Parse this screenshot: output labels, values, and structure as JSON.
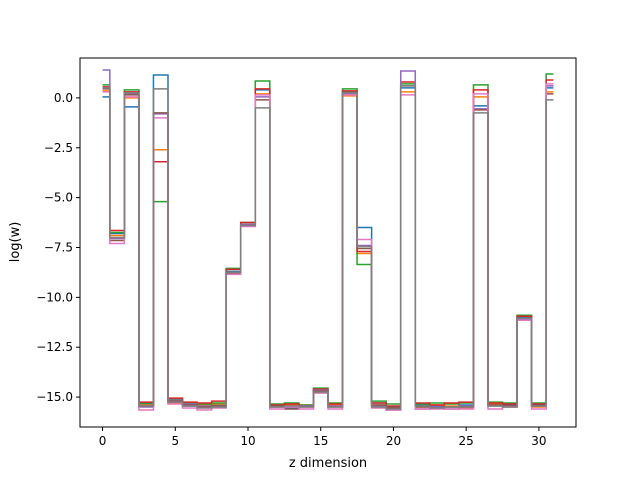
{
  "chart_data": {
    "type": "line",
    "drawstyle": "steps-mid",
    "title": "",
    "xlabel": "z dimension",
    "ylabel": "log(w)",
    "xlim": [
      -1.55,
      32.55
    ],
    "ylim": [
      -16.5,
      2.0
    ],
    "xticks": [
      0,
      5,
      10,
      15,
      20,
      25,
      30
    ],
    "xtick_labels": [
      "0",
      "5",
      "10",
      "15",
      "20",
      "25",
      "30"
    ],
    "yticks": [
      0.0,
      -2.5,
      -5.0,
      -7.5,
      -10.0,
      -12.5,
      -15.0
    ],
    "ytick_labels": [
      "0.0",
      "−2.5",
      "−5.0",
      "−7.5",
      "−10.0",
      "−12.5",
      "−15.0"
    ],
    "grid": false,
    "legend": false,
    "x": [
      0,
      1,
      2,
      3,
      4,
      5,
      6,
      7,
      8,
      9,
      10,
      11,
      12,
      13,
      14,
      15,
      16,
      17,
      18,
      19,
      20,
      21,
      22,
      23,
      24,
      25,
      26,
      27,
      28,
      29,
      30,
      31
    ],
    "series": [
      {
        "color": "#1f77b4",
        "values": [
          0.05,
          -6.8,
          -0.45,
          -15.35,
          1.15,
          -15.2,
          -15.45,
          -15.5,
          -15.4,
          -8.7,
          -6.35,
          0.4,
          -15.45,
          -15.55,
          -15.45,
          -14.7,
          -15.45,
          0.25,
          -6.5,
          -15.3,
          -15.5,
          0.5,
          -15.4,
          -15.45,
          -15.5,
          -15.4,
          -0.4,
          -15.3,
          -15.4,
          -11.0,
          -15.4,
          0.5
        ]
      },
      {
        "color": "#ff7f0e",
        "values": [
          0.35,
          -6.9,
          0.0,
          -15.4,
          -2.6,
          -15.3,
          -15.4,
          -15.4,
          -15.35,
          -8.75,
          -6.4,
          0.2,
          -15.5,
          -15.4,
          -15.4,
          -14.75,
          -15.4,
          0.1,
          -7.8,
          -15.4,
          -15.55,
          0.3,
          -15.5,
          -15.4,
          -15.45,
          -15.55,
          0.05,
          -15.35,
          -15.5,
          -11.05,
          -15.5,
          0.3
        ]
      },
      {
        "color": "#2ca02c",
        "values": [
          0.65,
          -6.75,
          0.4,
          -15.3,
          -5.2,
          -15.1,
          -15.3,
          -15.35,
          -15.3,
          -8.55,
          -6.25,
          0.85,
          -15.35,
          -15.3,
          -15.4,
          -14.55,
          -15.3,
          0.45,
          -8.35,
          -15.2,
          -15.35,
          0.7,
          -15.35,
          -15.3,
          -15.35,
          -15.3,
          0.65,
          -15.25,
          -15.3,
          -10.9,
          -15.3,
          1.2
        ]
      },
      {
        "color": "#d62728",
        "values": [
          0.55,
          -6.65,
          0.3,
          -15.25,
          -3.2,
          -15.05,
          -15.25,
          -15.3,
          -15.2,
          -8.6,
          -6.25,
          0.45,
          -15.4,
          -15.35,
          -15.45,
          -14.6,
          -15.35,
          0.35,
          -7.7,
          -15.3,
          -15.45,
          0.8,
          -15.3,
          -15.4,
          -15.3,
          -15.25,
          0.4,
          -15.3,
          -15.35,
          -10.95,
          -15.35,
          0.9
        ]
      },
      {
        "color": "#9467bd",
        "values": [
          1.4,
          -7.05,
          0.2,
          -15.5,
          -0.8,
          -15.15,
          -15.35,
          -15.45,
          -15.45,
          -8.8,
          -6.35,
          0.05,
          -15.5,
          -15.5,
          -15.45,
          -14.65,
          -15.45,
          0.2,
          -7.4,
          -15.45,
          -15.65,
          1.35,
          -15.6,
          -15.5,
          -15.6,
          -15.45,
          -0.55,
          -15.45,
          -15.45,
          -11.1,
          -15.45,
          0.6
        ]
      },
      {
        "color": "#8c564b",
        "values": [
          0.45,
          -7.15,
          0.15,
          -15.45,
          -0.75,
          -15.2,
          -15.4,
          -15.5,
          -15.45,
          -8.8,
          -6.4,
          -0.1,
          -15.45,
          -15.6,
          -15.5,
          -14.7,
          -15.5,
          0.3,
          -7.55,
          -15.4,
          -15.55,
          0.6,
          -15.5,
          -15.55,
          -15.5,
          -15.5,
          -0.6,
          -15.4,
          -15.45,
          -11.05,
          -15.45,
          0.2
        ]
      },
      {
        "color": "#e377c2",
        "values": [
          0.3,
          -7.3,
          0.05,
          -15.65,
          -1.0,
          -15.35,
          -15.55,
          -15.65,
          -15.55,
          -8.85,
          -6.45,
          0.15,
          -15.6,
          -15.5,
          -15.6,
          -14.8,
          -15.6,
          0.15,
          -7.1,
          -15.55,
          -15.65,
          0.15,
          -15.6,
          -15.6,
          -15.6,
          -15.6,
          0.2,
          -15.6,
          -15.5,
          -11.15,
          -15.6,
          0.7
        ]
      },
      {
        "color": "#7f7f7f",
        "values": [
          0.5,
          -7.0,
          0.25,
          -15.45,
          0.45,
          -15.25,
          -15.45,
          -15.55,
          -15.5,
          -8.75,
          -6.4,
          -0.5,
          -15.5,
          -15.45,
          -15.5,
          -14.75,
          -15.5,
          0.25,
          -7.45,
          -15.5,
          -15.6,
          0.6,
          -15.45,
          -15.55,
          -15.5,
          -15.5,
          -0.75,
          -15.45,
          -15.5,
          -11.05,
          -15.45,
          -0.1
        ]
      }
    ]
  }
}
